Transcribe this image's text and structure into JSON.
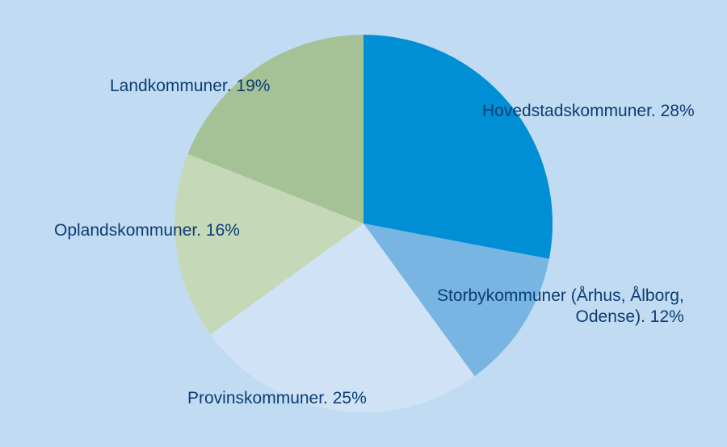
{
  "chart_data": {
    "type": "pie",
    "title": "",
    "start_angle_deg": 0,
    "direction": "clockwise",
    "slices": [
      {
        "label": "Hovedstadskommuner. 28%",
        "value": 28,
        "color": "#008fd5"
      },
      {
        "label_lines": [
          "Storbykommuner (Århus, Ålborg,",
          "Odense). 12%"
        ],
        "value": 12,
        "color": "#78b5e2"
      },
      {
        "label": "Provinskommuner. 25%",
        "value": 25,
        "color": "#d0e3f6"
      },
      {
        "label": "Oplandskommuner. 16%",
        "value": 16,
        "color": "#c5d9b8"
      },
      {
        "label": "Landkommuner. 19%",
        "value": 19,
        "color": "#a4c296"
      }
    ]
  },
  "colors": {
    "background": "#c1dcf2",
    "label_text": "#0b3c74"
  }
}
